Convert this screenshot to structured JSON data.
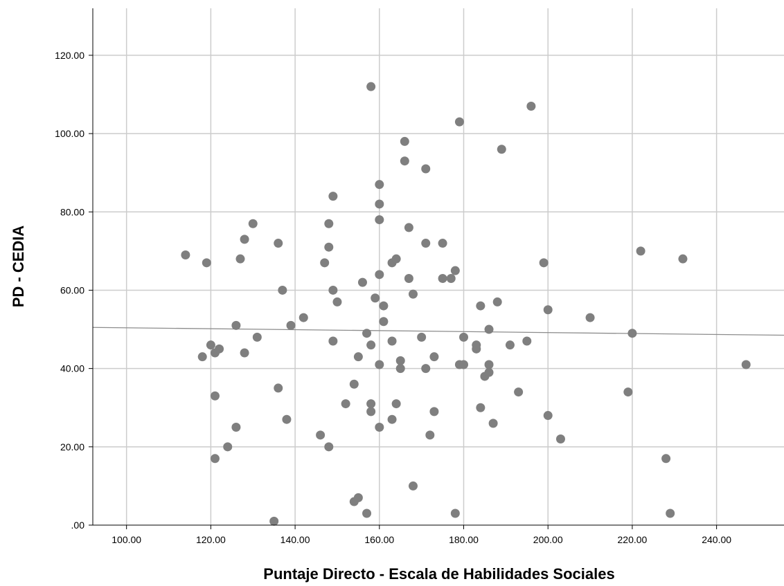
{
  "chart_data": {
    "type": "scatter",
    "title": "",
    "xlabel": "Puntaje Directo - Escala de Habilidades Sociales",
    "ylabel": "PD - CEDIA",
    "xlim": [
      92,
      256
    ],
    "ylim": [
      0,
      132
    ],
    "x_ticks": [
      100,
      120,
      140,
      160,
      180,
      200,
      220,
      240
    ],
    "x_tick_labels": [
      "100.00",
      "120.00",
      "140.00",
      "160.00",
      "180.00",
      "200.00",
      "220.00",
      "240.00"
    ],
    "y_ticks": [
      0,
      20,
      40,
      60,
      80,
      100,
      120
    ],
    "y_tick_labels": [
      ".00",
      "20.00",
      "40.00",
      "60.00",
      "80.00",
      "100.00",
      "120.00"
    ],
    "grid": true,
    "legend": "none",
    "colors": {
      "points": "#7f7f7f",
      "fit_line": "#8c8c8c",
      "grid": "#cccccc",
      "axis": "#000000"
    },
    "fit_line": {
      "x": [
        92,
        256
      ],
      "y": [
        50.5,
        48.5
      ]
    },
    "points": [
      {
        "x": 114,
        "y": 69
      },
      {
        "x": 118,
        "y": 43
      },
      {
        "x": 119,
        "y": 67
      },
      {
        "x": 120,
        "y": 46
      },
      {
        "x": 121,
        "y": 44
      },
      {
        "x": 121,
        "y": 33
      },
      {
        "x": 121,
        "y": 17
      },
      {
        "x": 122,
        "y": 45
      },
      {
        "x": 124,
        "y": 20
      },
      {
        "x": 126,
        "y": 51
      },
      {
        "x": 126,
        "y": 25
      },
      {
        "x": 127,
        "y": 68
      },
      {
        "x": 128,
        "y": 73
      },
      {
        "x": 128,
        "y": 44
      },
      {
        "x": 130,
        "y": 77
      },
      {
        "x": 131,
        "y": 48
      },
      {
        "x": 135,
        "y": 1
      },
      {
        "x": 136,
        "y": 72
      },
      {
        "x": 136,
        "y": 35
      },
      {
        "x": 137,
        "y": 60
      },
      {
        "x": 138,
        "y": 27
      },
      {
        "x": 139,
        "y": 51
      },
      {
        "x": 142,
        "y": 53
      },
      {
        "x": 146,
        "y": 23
      },
      {
        "x": 147,
        "y": 67
      },
      {
        "x": 148,
        "y": 77
      },
      {
        "x": 148,
        "y": 71
      },
      {
        "x": 148,
        "y": 20
      },
      {
        "x": 149,
        "y": 84
      },
      {
        "x": 149,
        "y": 60
      },
      {
        "x": 149,
        "y": 47
      },
      {
        "x": 150,
        "y": 57
      },
      {
        "x": 152,
        "y": 31
      },
      {
        "x": 154,
        "y": 36
      },
      {
        "x": 154,
        "y": 6
      },
      {
        "x": 155,
        "y": 43
      },
      {
        "x": 155,
        "y": 7
      },
      {
        "x": 156,
        "y": 62
      },
      {
        "x": 157,
        "y": 49
      },
      {
        "x": 157,
        "y": 3
      },
      {
        "x": 158,
        "y": 112
      },
      {
        "x": 158,
        "y": 46
      },
      {
        "x": 158,
        "y": 31
      },
      {
        "x": 158,
        "y": 29
      },
      {
        "x": 159,
        "y": 58
      },
      {
        "x": 160,
        "y": 87
      },
      {
        "x": 160,
        "y": 82
      },
      {
        "x": 160,
        "y": 78
      },
      {
        "x": 160,
        "y": 64
      },
      {
        "x": 160,
        "y": 41
      },
      {
        "x": 160,
        "y": 25
      },
      {
        "x": 161,
        "y": 56
      },
      {
        "x": 161,
        "y": 52
      },
      {
        "x": 163,
        "y": 67
      },
      {
        "x": 163,
        "y": 47
      },
      {
        "x": 163,
        "y": 27
      },
      {
        "x": 164,
        "y": 68
      },
      {
        "x": 164,
        "y": 31
      },
      {
        "x": 165,
        "y": 42
      },
      {
        "x": 165,
        "y": 40
      },
      {
        "x": 166,
        "y": 98
      },
      {
        "x": 166,
        "y": 93
      },
      {
        "x": 167,
        "y": 76
      },
      {
        "x": 167,
        "y": 63
      },
      {
        "x": 168,
        "y": 59
      },
      {
        "x": 168,
        "y": 10
      },
      {
        "x": 170,
        "y": 48
      },
      {
        "x": 171,
        "y": 91
      },
      {
        "x": 171,
        "y": 72
      },
      {
        "x": 171,
        "y": 40
      },
      {
        "x": 172,
        "y": 23
      },
      {
        "x": 173,
        "y": 43
      },
      {
        "x": 173,
        "y": 29
      },
      {
        "x": 175,
        "y": 72
      },
      {
        "x": 175,
        "y": 63
      },
      {
        "x": 177,
        "y": 63
      },
      {
        "x": 178,
        "y": 65
      },
      {
        "x": 178,
        "y": 3
      },
      {
        "x": 179,
        "y": 103
      },
      {
        "x": 179,
        "y": 41
      },
      {
        "x": 180,
        "y": 48
      },
      {
        "x": 180,
        "y": 41
      },
      {
        "x": 183,
        "y": 46
      },
      {
        "x": 183,
        "y": 45
      },
      {
        "x": 184,
        "y": 56
      },
      {
        "x": 184,
        "y": 30
      },
      {
        "x": 185,
        "y": 38
      },
      {
        "x": 186,
        "y": 50
      },
      {
        "x": 186,
        "y": 41
      },
      {
        "x": 186,
        "y": 39
      },
      {
        "x": 187,
        "y": 26
      },
      {
        "x": 188,
        "y": 57
      },
      {
        "x": 189,
        "y": 96
      },
      {
        "x": 191,
        "y": 46
      },
      {
        "x": 193,
        "y": 34
      },
      {
        "x": 195,
        "y": 47
      },
      {
        "x": 196,
        "y": 107
      },
      {
        "x": 199,
        "y": 67
      },
      {
        "x": 200,
        "y": 55
      },
      {
        "x": 200,
        "y": 28
      },
      {
        "x": 203,
        "y": 22
      },
      {
        "x": 210,
        "y": 53
      },
      {
        "x": 219,
        "y": 34
      },
      {
        "x": 220,
        "y": 49
      },
      {
        "x": 222,
        "y": 70
      },
      {
        "x": 228,
        "y": 17
      },
      {
        "x": 229,
        "y": 3
      },
      {
        "x": 232,
        "y": 68
      },
      {
        "x": 247,
        "y": 41
      }
    ]
  }
}
